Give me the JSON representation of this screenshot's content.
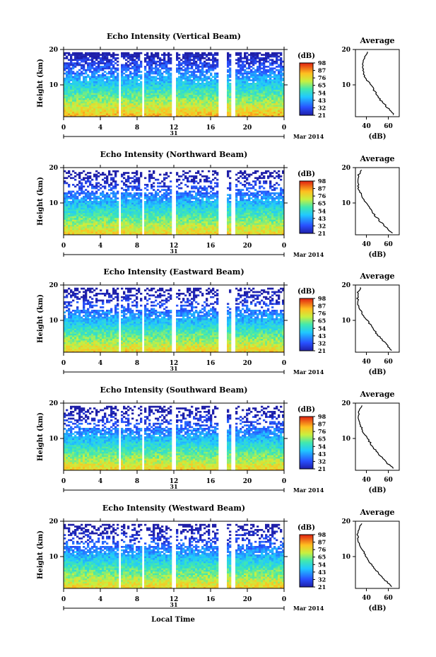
{
  "figure": {
    "xlabel": "Local Time",
    "date_label": "Mar 2014",
    "day_label": "31",
    "avg_title": "Average",
    "avg_xlabel": "(dB)",
    "cb_unit": "(dB)",
    "ylabel": "Height (km)"
  },
  "chart_data": [
    {
      "type": "heatmap",
      "title": "Echo Intensity (Vertical Beam)",
      "xlabel": "",
      "ylabel": "Height (km)",
      "x_ticks": [
        "0",
        "4",
        "8",
        "12",
        "16",
        "20",
        "0"
      ],
      "y_ticks": [
        "20",
        "10"
      ],
      "xlim": [
        0,
        24
      ],
      "ylim": [
        1,
        20
      ],
      "colorbar": {
        "unit": "(dB)",
        "ticks": [
          "98",
          "87",
          "76",
          "65",
          "54",
          "43",
          "32",
          "21"
        ]
      },
      "data_gaps_hours": [
        [
          5.8,
          6.2
        ],
        [
          8.4,
          8.7
        ],
        [
          11.7,
          12.2
        ],
        [
          16.8,
          17.1
        ],
        [
          17.3,
          17.6
        ],
        [
          18.1,
          18.5
        ]
      ],
      "average_profile": {
        "title": "Average",
        "xlabel": "(dB)",
        "x_ticks": [
          "40",
          "60"
        ],
        "y_ticks": [
          "20",
          "10"
        ],
        "height_km": [
          2,
          3,
          4,
          5,
          6,
          8,
          10,
          12,
          14,
          16,
          18,
          19
        ],
        "db": [
          64,
          61,
          58,
          55,
          52,
          48,
          44,
          39,
          37,
          37,
          38,
          41
        ]
      }
    },
    {
      "type": "heatmap",
      "title": "Echo Intensity (Northward Beam)",
      "xlabel": "",
      "ylabel": "Height (km)",
      "x_ticks": [
        "0",
        "4",
        "8",
        "12",
        "16",
        "20",
        "0"
      ],
      "y_ticks": [
        "20",
        "10"
      ],
      "xlim": [
        0,
        24
      ],
      "ylim": [
        1,
        20
      ],
      "colorbar": {
        "unit": "(dB)",
        "ticks": [
          "98",
          "87",
          "76",
          "65",
          "54",
          "43",
          "32",
          "21"
        ]
      },
      "data_gaps_hours": [
        [
          5.8,
          6.2
        ],
        [
          8.4,
          8.7
        ],
        [
          11.7,
          12.2
        ],
        [
          16.8,
          17.1
        ],
        [
          17.3,
          17.6
        ],
        [
          18.1,
          18.5
        ]
      ],
      "average_profile": {
        "title": "Average",
        "xlabel": "(dB)",
        "x_ticks": [
          "40",
          "60"
        ],
        "y_ticks": [
          "20",
          "10"
        ],
        "height_km": [
          2,
          3,
          4,
          5,
          6,
          8,
          10,
          12,
          14,
          16,
          18,
          19
        ],
        "db": [
          62,
          58,
          55,
          52,
          49,
          44,
          40,
          36,
          33,
          32,
          33,
          35
        ]
      }
    },
    {
      "type": "heatmap",
      "title": "Echo Intensity (Eastward Beam)",
      "xlabel": "",
      "ylabel": "Height (km)",
      "x_ticks": [
        "0",
        "4",
        "8",
        "12",
        "16",
        "20",
        "0"
      ],
      "y_ticks": [
        "20",
        "10"
      ],
      "xlim": [
        0,
        24
      ],
      "ylim": [
        1,
        20
      ],
      "colorbar": {
        "unit": "(dB)",
        "ticks": [
          "98",
          "87",
          "76",
          "65",
          "54",
          "43",
          "32",
          "21"
        ]
      },
      "data_gaps_hours": [
        [
          5.8,
          6.2
        ],
        [
          8.4,
          8.7
        ],
        [
          11.7,
          12.2
        ],
        [
          16.8,
          17.1
        ],
        [
          17.3,
          17.6
        ],
        [
          18.1,
          18.5
        ]
      ],
      "average_profile": {
        "title": "Average",
        "xlabel": "(dB)",
        "x_ticks": [
          "40",
          "60"
        ],
        "y_ticks": [
          "20",
          "10"
        ],
        "height_km": [
          2,
          3,
          4,
          5,
          6,
          8,
          10,
          12,
          14,
          16,
          18,
          19
        ],
        "db": [
          62,
          59,
          56,
          53,
          50,
          45,
          41,
          36,
          33,
          32,
          32,
          34
        ]
      }
    },
    {
      "type": "heatmap",
      "title": "Echo Intensity (Southward Beam)",
      "xlabel": "",
      "ylabel": "Height (km)",
      "x_ticks": [
        "0",
        "4",
        "8",
        "12",
        "16",
        "20",
        "0"
      ],
      "y_ticks": [
        "20",
        "10"
      ],
      "xlim": [
        0,
        24
      ],
      "ylim": [
        1,
        20
      ],
      "colorbar": {
        "unit": "(dB)",
        "ticks": [
          "98",
          "87",
          "76",
          "65",
          "54",
          "43",
          "32",
          "21"
        ]
      },
      "data_gaps_hours": [
        [
          5.8,
          6.2
        ],
        [
          8.4,
          8.7
        ],
        [
          11.7,
          12.2
        ],
        [
          16.8,
          17.1
        ],
        [
          17.3,
          17.6
        ],
        [
          18.1,
          18.5
        ]
      ],
      "average_profile": {
        "title": "Average",
        "xlabel": "(dB)",
        "x_ticks": [
          "40",
          "60"
        ],
        "y_ticks": [
          "20",
          "10"
        ],
        "height_km": [
          2,
          3,
          4,
          5,
          6,
          8,
          10,
          12,
          14,
          16,
          18,
          19
        ],
        "db": [
          63,
          59,
          56,
          53,
          50,
          45,
          41,
          37,
          34,
          33,
          33,
          35
        ]
      }
    },
    {
      "type": "heatmap",
      "title": "Echo Intensity (Westward Beam)",
      "xlabel": "Local Time",
      "ylabel": "Height (km)",
      "x_ticks": [
        "0",
        "4",
        "8",
        "12",
        "16",
        "20",
        "0"
      ],
      "y_ticks": [
        "20",
        "10"
      ],
      "xlim": [
        0,
        24
      ],
      "ylim": [
        1,
        20
      ],
      "colorbar": {
        "unit": "(dB)",
        "ticks": [
          "98",
          "87",
          "76",
          "65",
          "54",
          "43",
          "32",
          "21"
        ]
      },
      "data_gaps_hours": [
        [
          5.8,
          6.2
        ],
        [
          8.4,
          8.7
        ],
        [
          11.7,
          12.2
        ],
        [
          16.8,
          17.1
        ],
        [
          17.3,
          17.6
        ],
        [
          18.1,
          18.5
        ]
      ],
      "average_profile": {
        "title": "Average",
        "xlabel": "(dB)",
        "x_ticks": [
          "40",
          "60"
        ],
        "y_ticks": [
          "20",
          "10"
        ],
        "height_km": [
          2,
          3,
          4,
          5,
          6,
          8,
          10,
          12,
          14,
          16,
          18,
          19
        ],
        "db": [
          62,
          58,
          55,
          52,
          49,
          44,
          40,
          36,
          33,
          32,
          33,
          35
        ]
      }
    }
  ]
}
